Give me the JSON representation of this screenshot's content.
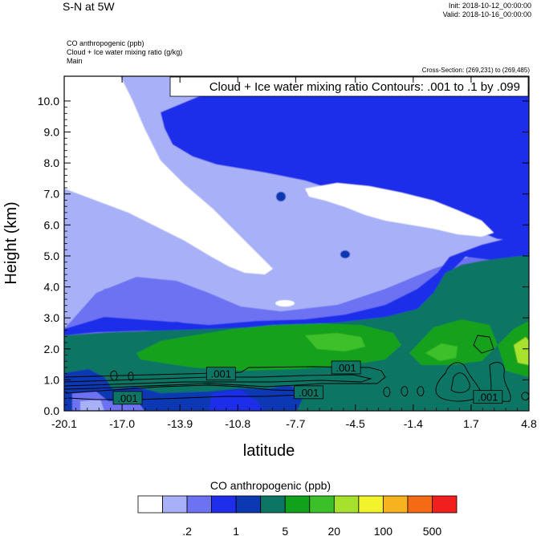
{
  "header": {
    "title": "S-N at 5W",
    "init": "Init: 2018-10-12_00:00:00",
    "valid": "Valid: 2018-10-16_00:00:00",
    "field1": "CO anthropogenic   (ppb)",
    "field2": "Cloud + Ice water mixing ratio   (g/kg)",
    "field3": "Main",
    "cross_section": "Cross-Section: (269,231) to (269,485)"
  },
  "chart_data": {
    "type": "heatmap",
    "title": "Cloud + Ice water mixing ratio Contours: .001 to .1 by .099",
    "xlabel": "latitude",
    "ylabel": "Height (km)",
    "xlim": [
      -20.1,
      4.8
    ],
    "ylim": [
      0.0,
      10.8
    ],
    "x_ticks": [
      "-20.1",
      "-17.0",
      "-13.9",
      "-10.8",
      "-7.7",
      "-4.5",
      "-1.4",
      "1.7",
      "4.8"
    ],
    "x_tick_values": [
      -20.1,
      -17.0,
      -13.9,
      -10.8,
      -7.7,
      -4.5,
      -1.4,
      1.7,
      4.8
    ],
    "y_ticks": [
      "0.0",
      "1.0",
      "2.0",
      "3.0",
      "4.0",
      "5.0",
      "6.0",
      "7.0",
      "8.0",
      "9.0",
      "10.0"
    ],
    "y_tick_values": [
      0,
      1,
      2,
      3,
      4,
      5,
      6,
      7,
      8,
      9,
      10
    ],
    "contour_labels": [
      {
        "text": ".001",
        "x": -16.7,
        "y": 0.42
      },
      {
        "text": ".001",
        "x": -11.7,
        "y": 1.2
      },
      {
        "text": ".001",
        "x": -7.0,
        "y": 0.6
      },
      {
        "text": ".001",
        "x": -5.0,
        "y": 1.4
      },
      {
        "text": ".001",
        "x": 2.6,
        "y": 0.45
      }
    ],
    "colorbar": {
      "title": "CO anthropogenic  (ppb)",
      "colors": [
        "#ffffff",
        "#a8b0f8",
        "#6c72f2",
        "#1f2eea",
        "#0c38b4",
        "#0d7564",
        "#12a11b",
        "#3cc02a",
        "#a6e22d",
        "#f2f22d",
        "#f7b21f",
        "#f56a14",
        "#f21f1f"
      ],
      "labels": [
        ".2",
        "1",
        "5",
        "20",
        "100",
        "500"
      ]
    }
  }
}
